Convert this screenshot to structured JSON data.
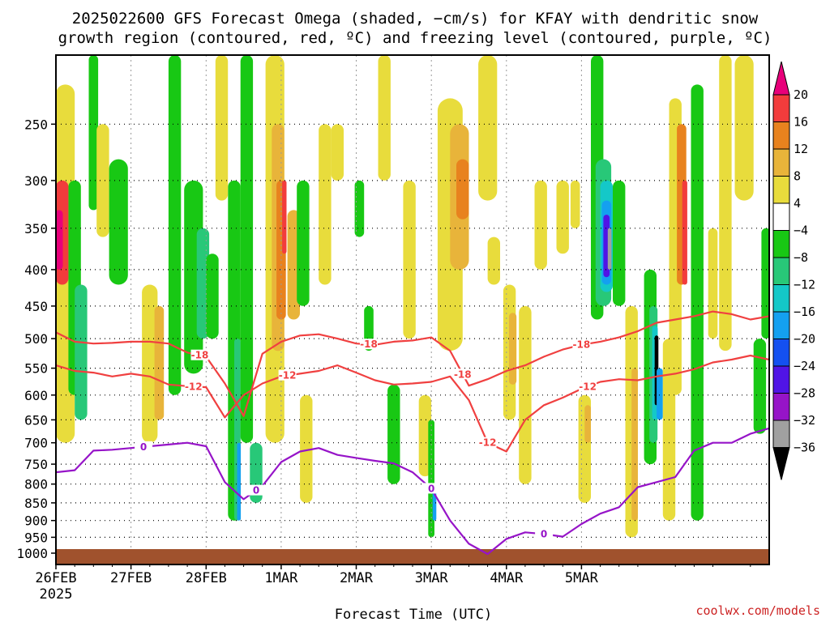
{
  "chart_data": {
    "type": "heatmap",
    "title_line1": "2025022600 GFS Forecast Omega (shaded, −cm/s) for KFAY with dendritic snow",
    "title_line2": "growth region (contoured, red, ºC) and freezing level (contoured, purple, ºC)",
    "xlabel": "Forecast Time (UTC)",
    "credit": "coolwx.com/models",
    "x_ticks": [
      "26FEB",
      "27FEB",
      "28FEB",
      "1MAR",
      "2MAR",
      "3MAR",
      "4MAR",
      "5MAR"
    ],
    "x_year": "2025",
    "xlim_hours": [
      0,
      228
    ],
    "y_ticks": [
      250,
      300,
      350,
      400,
      450,
      500,
      550,
      600,
      650,
      700,
      750,
      800,
      850,
      900,
      950,
      1000
    ],
    "ylim_hpa": [
      200,
      1000
    ],
    "colorbar_levels": [
      "20",
      "16",
      "12",
      "8",
      "4",
      "−4",
      "−8",
      "−12",
      "−16",
      "−20",
      "−24",
      "−28",
      "−32",
      "−36"
    ],
    "colors": {
      "pos20": "#e8007a",
      "pos16": "#f23c3c",
      "pos12": "#e8821e",
      "pos8": "#e8b43a",
      "pos4": "#e8dc3c",
      "neutral": "#ffffff",
      "neg4": "#18c814",
      "neg8": "#28c878",
      "neg12": "#14c8c8",
      "neg16": "#14a0f0",
      "neg20": "#1450f0",
      "neg24": "#5014e6",
      "neg28": "#9614c8",
      "neg32": "#a0a0a0",
      "neg36": "#000000",
      "ground": "#a0522d",
      "dgz": "#f04040",
      "freezing": "#9614c8"
    },
    "contour_labels": {
      "dgz_upper": "-18",
      "dgz_lower": "-12",
      "freezing": "0"
    },
    "series": [
      {
        "name": "-18",
        "color": "#f04040",
        "x": [
          0,
          6,
          12,
          18,
          24,
          30,
          36,
          42,
          48,
          54,
          60,
          66,
          72,
          78,
          84,
          90,
          96,
          102,
          108,
          114,
          120,
          126,
          132,
          138,
          144,
          150,
          156,
          162,
          168,
          174,
          180,
          186,
          192,
          198,
          204,
          210,
          216,
          222,
          228
        ],
        "y": [
          490,
          505,
          508,
          507,
          505,
          505,
          508,
          523,
          530,
          578,
          642,
          525,
          505,
          495,
          493,
          500,
          508,
          510,
          505,
          503,
          498,
          520,
          582,
          570,
          555,
          545,
          530,
          518,
          510,
          505,
          498,
          488,
          475,
          470,
          465,
          458,
          462,
          470,
          465
        ]
      },
      {
        "name": "-12",
        "color": "#f04040",
        "x": [
          0,
          6,
          12,
          18,
          24,
          30,
          36,
          42,
          48,
          54,
          60,
          66,
          72,
          78,
          84,
          90,
          96,
          102,
          108,
          114,
          120,
          126,
          132,
          138,
          144,
          150,
          156,
          162,
          168,
          174,
          180,
          186,
          192,
          198,
          204,
          210,
          216,
          222,
          228
        ],
        "y": [
          545,
          555,
          558,
          565,
          560,
          565,
          580,
          583,
          585,
          645,
          600,
          578,
          565,
          560,
          555,
          545,
          558,
          572,
          580,
          578,
          575,
          565,
          610,
          700,
          720,
          650,
          620,
          605,
          588,
          575,
          570,
          572,
          565,
          560,
          552,
          540,
          535,
          528,
          535
        ]
      },
      {
        "name": "0",
        "color": "#9614c8",
        "x": [
          0,
          6,
          12,
          18,
          24,
          30,
          36,
          42,
          48,
          54,
          60,
          66,
          72,
          78,
          84,
          90,
          96,
          102,
          108,
          114,
          120,
          126,
          132,
          138,
          144,
          150,
          156,
          162,
          168,
          174,
          180,
          186,
          192,
          198,
          204,
          210,
          216,
          222,
          228
        ],
        "y": [
          770,
          765,
          718,
          716,
          712,
          708,
          704,
          700,
          708,
          795,
          840,
          805,
          745,
          720,
          712,
          728,
          735,
          742,
          748,
          770,
          812,
          900,
          970,
          1003,
          955,
          935,
          940,
          948,
          910,
          880,
          862,
          808,
          795,
          782,
          718,
          700,
          700,
          680,
          668
        ]
      }
    ]
  }
}
